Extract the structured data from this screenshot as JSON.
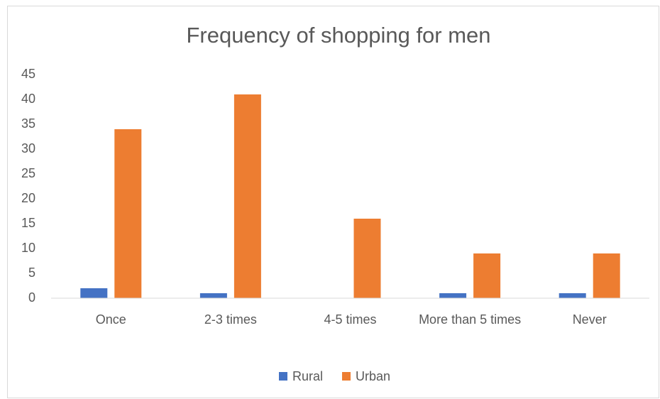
{
  "chart_data": {
    "type": "bar",
    "title": "Frequency of shopping for men",
    "categories": [
      "Once",
      "2-3 times",
      "4-5 times",
      "More than 5 times",
      "Never"
    ],
    "series": [
      {
        "name": "Rural",
        "color": "#4472c4",
        "values": [
          2,
          1,
          0,
          1,
          1
        ]
      },
      {
        "name": "Urban",
        "color": "#ed7d31",
        "values": [
          34,
          41,
          16,
          9,
          9
        ]
      }
    ],
    "ylim": [
      0,
      45
    ],
    "yticks": [
      0,
      5,
      10,
      15,
      20,
      25,
      30,
      35,
      40,
      45
    ],
    "grid": false,
    "legend": "bottom"
  }
}
